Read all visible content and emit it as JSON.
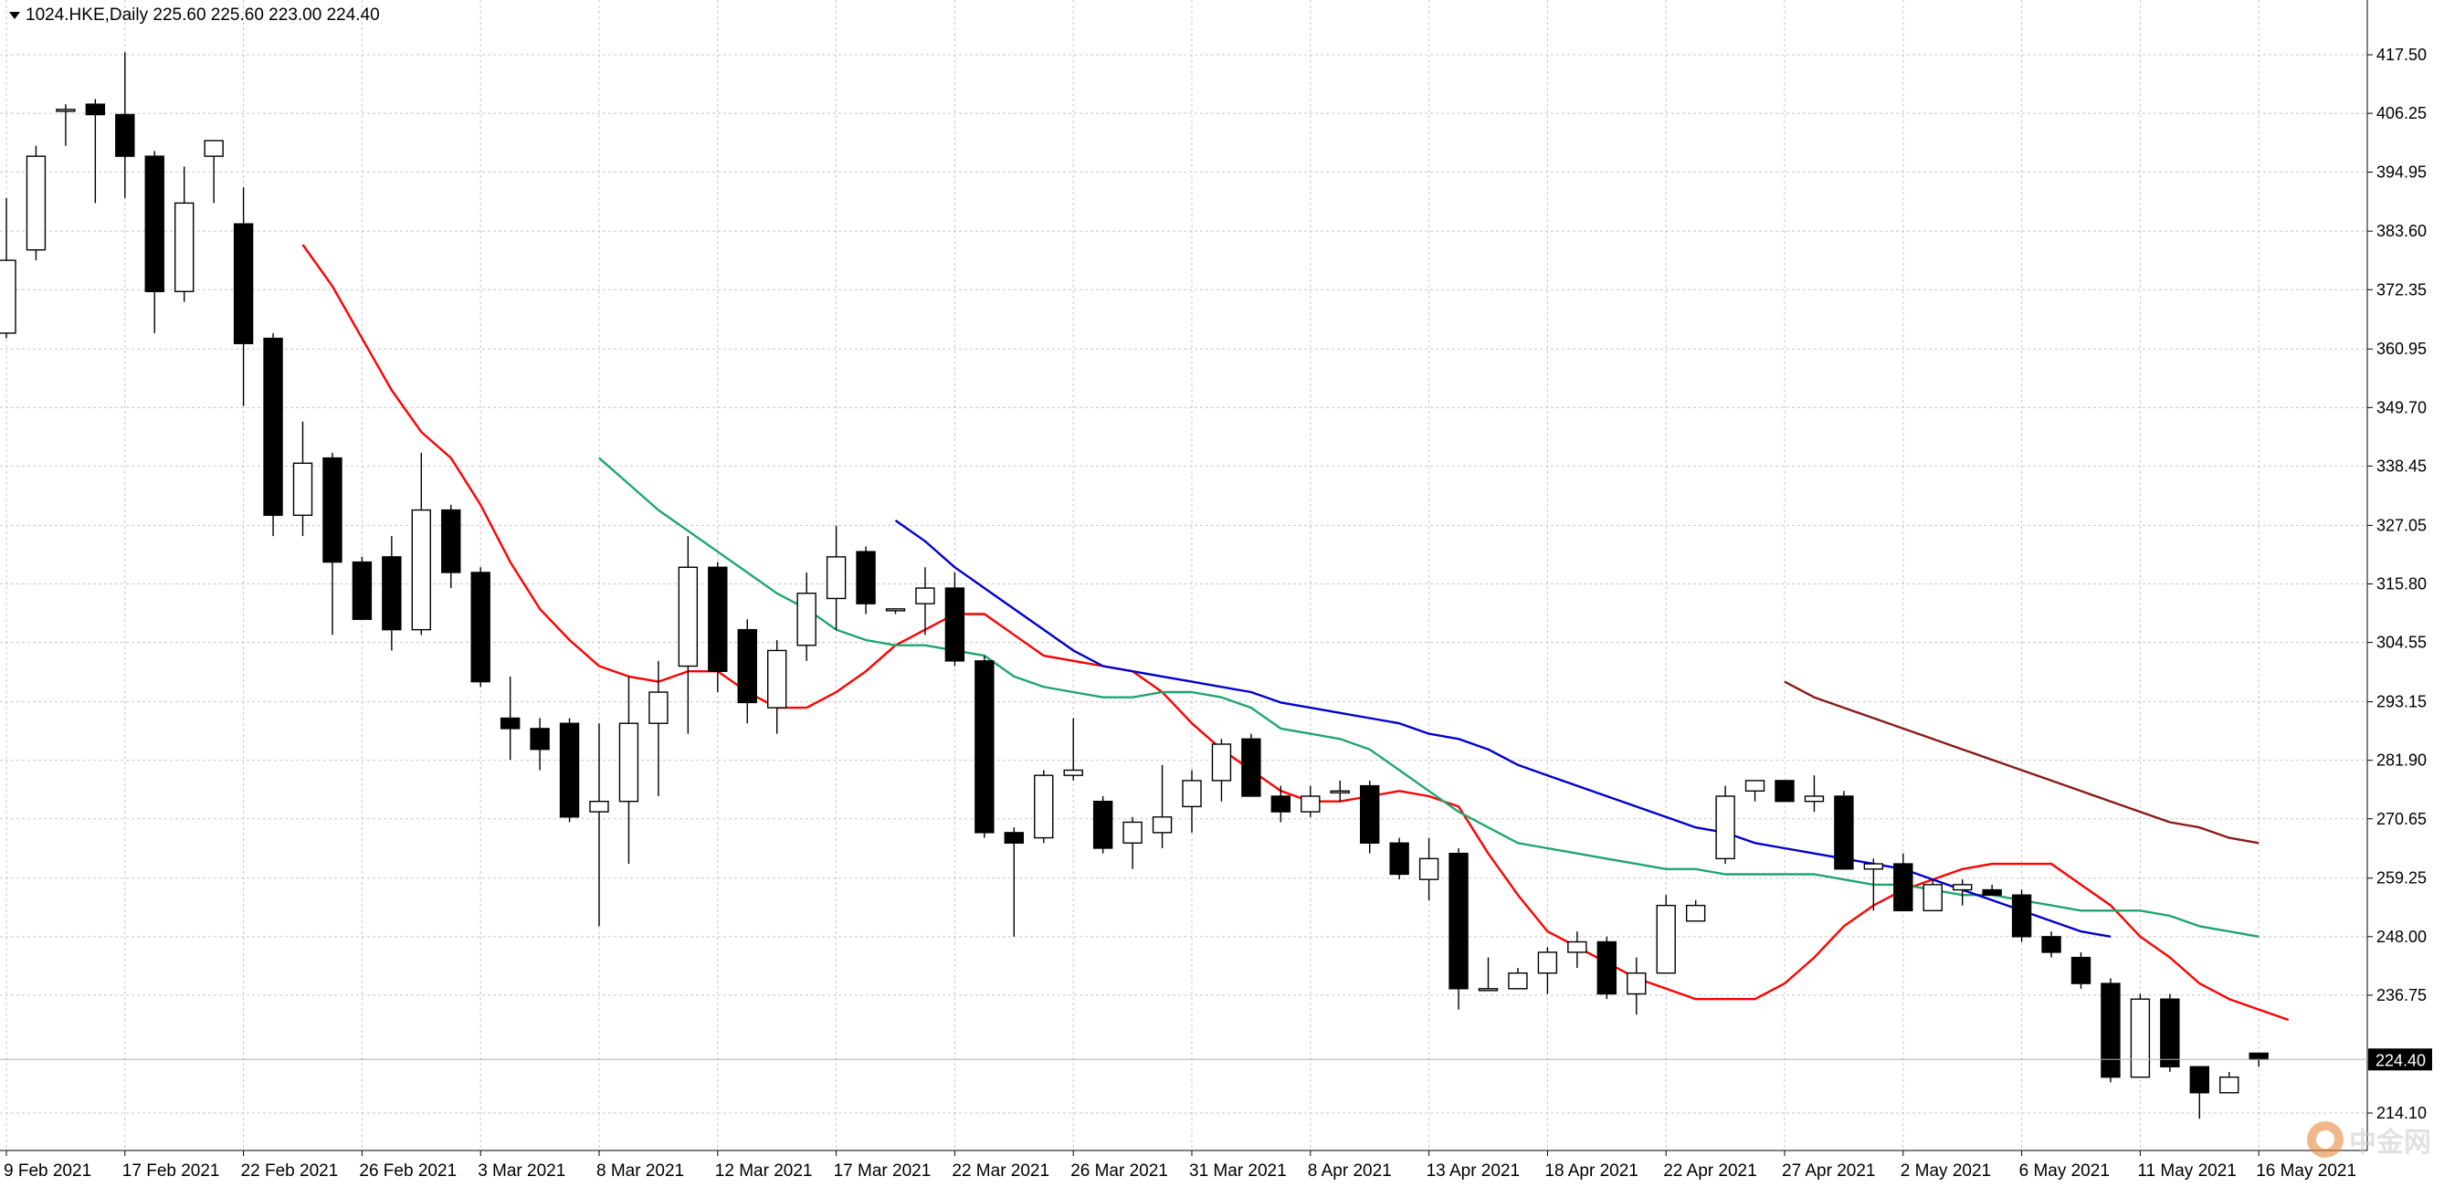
{
  "header": {
    "text": "1024.HKE,Daily  225.60 225.60 223.00 224.40"
  },
  "watermark": {
    "text": "中金网"
  },
  "chart_data": {
    "type": "candlestick",
    "symbol": "1024.HKE",
    "timeframe": "Daily",
    "ylim": [
      207.6,
      425.0
    ],
    "grid": true,
    "current_price": {
      "label": "224.40",
      "value": 224.4
    },
    "y_ticks": [
      {
        "label": "417.50",
        "value": 417.5
      },
      {
        "label": "406.25",
        "value": 406.25
      },
      {
        "label": "394.95",
        "value": 394.95
      },
      {
        "label": "383.60",
        "value": 383.6
      },
      {
        "label": "372.35",
        "value": 372.35
      },
      {
        "label": "360.95",
        "value": 360.95
      },
      {
        "label": "349.70",
        "value": 349.7
      },
      {
        "label": "338.45",
        "value": 338.45
      },
      {
        "label": "327.05",
        "value": 327.05
      },
      {
        "label": "315.80",
        "value": 315.8
      },
      {
        "label": "304.55",
        "value": 304.55
      },
      {
        "label": "293.15",
        "value": 293.15
      },
      {
        "label": "281.90",
        "value": 281.9
      },
      {
        "label": "270.65",
        "value": 270.65
      },
      {
        "label": "259.25",
        "value": 259.25
      },
      {
        "label": "248.00",
        "value": 248.0
      },
      {
        "label": "236.75",
        "value": 236.75
      },
      {
        "label": "214.10",
        "value": 214.1
      }
    ],
    "x_ticks": [
      {
        "label": "9 Feb 2021",
        "index": 0
      },
      {
        "label": "17 Feb 2021",
        "index": 4
      },
      {
        "label": "22 Feb 2021",
        "index": 8
      },
      {
        "label": "26 Feb 2021",
        "index": 12
      },
      {
        "label": "3 Mar 2021",
        "index": 16
      },
      {
        "label": "8 Mar 2021",
        "index": 20
      },
      {
        "label": "12 Mar 2021",
        "index": 24
      },
      {
        "label": "17 Mar 2021",
        "index": 28
      },
      {
        "label": "22 Mar 2021",
        "index": 32
      },
      {
        "label": "26 Mar 2021",
        "index": 36
      },
      {
        "label": "31 Mar 2021",
        "index": 40
      },
      {
        "label": "8 Apr 2021",
        "index": 44
      },
      {
        "label": "13 Apr 2021",
        "index": 48
      },
      {
        "label": "18 Apr 2021",
        "index": 52
      },
      {
        "label": "22 Apr 2021",
        "index": 56
      },
      {
        "label": "27 Apr 2021",
        "index": 60
      },
      {
        "label": "2 May 2021",
        "index": 64
      },
      {
        "label": "6 May 2021",
        "index": 68
      },
      {
        "label": "11 May 2021",
        "index": 72
      },
      {
        "label": "16 May 2021",
        "index": 76
      }
    ],
    "candles": [
      {
        "o": 364.0,
        "h": 390.0,
        "l": 363.0,
        "c": 378.0
      },
      {
        "o": 380.0,
        "h": 400.0,
        "l": 378.0,
        "c": 398.0
      },
      {
        "o": 407.0,
        "h": 408.0,
        "l": 400.0,
        "c": 407.0
      },
      {
        "o": 408.0,
        "h": 409.0,
        "l": 389.0,
        "c": 406.0
      },
      {
        "o": 406.0,
        "h": 418.0,
        "l": 390.0,
        "c": 398.0
      },
      {
        "o": 398.0,
        "h": 399.0,
        "l": 364.0,
        "c": 372.0
      },
      {
        "o": 372.0,
        "h": 396.0,
        "l": 370.0,
        "c": 389.0
      },
      {
        "o": 398.0,
        "h": 401.0,
        "l": 389.0,
        "c": 401.0
      },
      {
        "o": 385.0,
        "h": 392.0,
        "l": 350.0,
        "c": 362.0
      },
      {
        "o": 363.0,
        "h": 364.0,
        "l": 325.0,
        "c": 329.0
      },
      {
        "o": 329.0,
        "h": 347.0,
        "l": 325.0,
        "c": 339.0
      },
      {
        "o": 340.0,
        "h": 341.0,
        "l": 306.0,
        "c": 320.0
      },
      {
        "o": 320.0,
        "h": 321.0,
        "l": 309.0,
        "c": 309.0
      },
      {
        "o": 321.0,
        "h": 325.0,
        "l": 303.0,
        "c": 307.0
      },
      {
        "o": 307.0,
        "h": 341.0,
        "l": 306.0,
        "c": 330.0
      },
      {
        "o": 330.0,
        "h": 331.0,
        "l": 315.0,
        "c": 318.0
      },
      {
        "o": 318.0,
        "h": 319.0,
        "l": 296.0,
        "c": 297.0
      },
      {
        "o": 290.0,
        "h": 298.0,
        "l": 282.0,
        "c": 288.0
      },
      {
        "o": 288.0,
        "h": 290.0,
        "l": 280.0,
        "c": 284.0
      },
      {
        "o": 289.0,
        "h": 290.0,
        "l": 270.0,
        "c": 271.0
      },
      {
        "o": 272.0,
        "h": 289.0,
        "l": 250.0,
        "c": 274.0
      },
      {
        "o": 274.0,
        "h": 298.0,
        "l": 262.0,
        "c": 289.0
      },
      {
        "o": 289.0,
        "h": 301.0,
        "l": 275.0,
        "c": 295.0
      },
      {
        "o": 300.0,
        "h": 325.0,
        "l": 287.0,
        "c": 319.0
      },
      {
        "o": 319.0,
        "h": 320.0,
        "l": 295.0,
        "c": 299.0
      },
      {
        "o": 307.0,
        "h": 309.0,
        "l": 289.0,
        "c": 293.0
      },
      {
        "o": 292.0,
        "h": 305.0,
        "l": 287.0,
        "c": 303.0
      },
      {
        "o": 304.0,
        "h": 318.0,
        "l": 301.0,
        "c": 314.0
      },
      {
        "o": 313.0,
        "h": 327.0,
        "l": 307.0,
        "c": 321.0
      },
      {
        "o": 322.0,
        "h": 323.0,
        "l": 310.0,
        "c": 312.0
      },
      {
        "o": 311.0,
        "h": 311.0,
        "l": 310.0,
        "c": 311.0
      },
      {
        "o": 312.0,
        "h": 319.0,
        "l": 306.0,
        "c": 315.0
      },
      {
        "o": 315.0,
        "h": 318.0,
        "l": 300.0,
        "c": 301.0
      },
      {
        "o": 301.0,
        "h": 302.0,
        "l": 267.0,
        "c": 268.0
      },
      {
        "o": 268.0,
        "h": 269.0,
        "l": 248.0,
        "c": 266.0
      },
      {
        "o": 267.0,
        "h": 280.0,
        "l": 266.0,
        "c": 279.0
      },
      {
        "o": 279.0,
        "h": 290.0,
        "l": 278.0,
        "c": 280.0
      },
      {
        "o": 274.0,
        "h": 275.0,
        "l": 264.0,
        "c": 265.0
      },
      {
        "o": 266.0,
        "h": 271.0,
        "l": 261.0,
        "c": 270.0
      },
      {
        "o": 268.0,
        "h": 281.0,
        "l": 265.0,
        "c": 271.0
      },
      {
        "o": 273.0,
        "h": 280.0,
        "l": 268.0,
        "c": 278.0
      },
      {
        "o": 278.0,
        "h": 286.0,
        "l": 274.0,
        "c": 285.0
      },
      {
        "o": 286.0,
        "h": 287.0,
        "l": 275.0,
        "c": 275.0
      },
      {
        "o": 275.0,
        "h": 277.0,
        "l": 270.0,
        "c": 272.0
      },
      {
        "o": 272.0,
        "h": 277.0,
        "l": 271.0,
        "c": 275.0
      },
      {
        "o": 276.0,
        "h": 278.0,
        "l": 274.0,
        "c": 276.0
      },
      {
        "o": 277.0,
        "h": 278.0,
        "l": 264.0,
        "c": 266.0
      },
      {
        "o": 266.0,
        "h": 267.0,
        "l": 259.0,
        "c": 260.0
      },
      {
        "o": 259.0,
        "h": 267.0,
        "l": 255.0,
        "c": 263.0
      },
      {
        "o": 264.0,
        "h": 265.0,
        "l": 234.0,
        "c": 238.0
      },
      {
        "o": 238.0,
        "h": 244.0,
        "l": 238.0,
        "c": 238.0
      },
      {
        "o": 238.0,
        "h": 242.0,
        "l": 238.0,
        "c": 241.0
      },
      {
        "o": 241.0,
        "h": 246.0,
        "l": 237.0,
        "c": 245.0
      },
      {
        "o": 245.0,
        "h": 249.0,
        "l": 242.0,
        "c": 247.0
      },
      {
        "o": 247.0,
        "h": 248.0,
        "l": 236.0,
        "c": 237.0
      },
      {
        "o": 237.0,
        "h": 244.0,
        "l": 233.0,
        "c": 241.0
      },
      {
        "o": 241.0,
        "h": 256.0,
        "l": 241.0,
        "c": 254.0
      },
      {
        "o": 251.0,
        "h": 255.0,
        "l": 251.0,
        "c": 254.0
      },
      {
        "o": 263.0,
        "h": 277.0,
        "l": 262.0,
        "c": 275.0
      },
      {
        "o": 276.0,
        "h": 278.0,
        "l": 274.0,
        "c": 278.0
      },
      {
        "o": 278.0,
        "h": 278.0,
        "l": 274.0,
        "c": 274.0
      },
      {
        "o": 274.0,
        "h": 279.0,
        "l": 272.0,
        "c": 275.0
      },
      {
        "o": 275.0,
        "h": 276.0,
        "l": 261.0,
        "c": 261.0
      },
      {
        "o": 261.0,
        "h": 263.0,
        "l": 253.0,
        "c": 262.0
      },
      {
        "o": 262.0,
        "h": 264.0,
        "l": 253.0,
        "c": 253.0
      },
      {
        "o": 253.0,
        "h": 259.0,
        "l": 253.0,
        "c": 258.0
      },
      {
        "o": 257.0,
        "h": 259.0,
        "l": 254.0,
        "c": 258.0
      },
      {
        "o": 257.0,
        "h": 258.0,
        "l": 256.0,
        "c": 256.0
      },
      {
        "o": 256.0,
        "h": 257.0,
        "l": 247.0,
        "c": 248.0
      },
      {
        "o": 248.0,
        "h": 249.0,
        "l": 244.0,
        "c": 245.0
      },
      {
        "o": 244.0,
        "h": 245.0,
        "l": 238.0,
        "c": 239.0
      },
      {
        "o": 239.0,
        "h": 240.0,
        "l": 220.0,
        "c": 221.0
      },
      {
        "o": 221.0,
        "h": 237.0,
        "l": 221.0,
        "c": 236.0
      },
      {
        "o": 236.0,
        "h": 237.0,
        "l": 222.0,
        "c": 223.0
      },
      {
        "o": 223.0,
        "h": 223.0,
        "l": 213.0,
        "c": 218.0
      },
      {
        "o": 218.0,
        "h": 222.0,
        "l": 218.0,
        "c": 221.0
      },
      {
        "o": 225.6,
        "h": 225.6,
        "l": 223.0,
        "c": 224.4
      }
    ],
    "series": [
      {
        "color": "#ff0000",
        "start": 10,
        "values": [
          381,
          373,
          363,
          353,
          345,
          340,
          331,
          320,
          311,
          305,
          300,
          298,
          297,
          299,
          299,
          295,
          292,
          292,
          295,
          299,
          304,
          307,
          310,
          310,
          306,
          302,
          301,
          300,
          299,
          295,
          289,
          284,
          280,
          276,
          274,
          274,
          275,
          276,
          275,
          273,
          264,
          256,
          249,
          246,
          243,
          240,
          238,
          236,
          236,
          236,
          239,
          244,
          250,
          254,
          257,
          259,
          261,
          262,
          262,
          262,
          258,
          254,
          248,
          244,
          239,
          236,
          234,
          232
        ]
      },
      {
        "color": "#1fa56e",
        "start": 20,
        "values": [
          340,
          335,
          330,
          326,
          322,
          318,
          314,
          311,
          307,
          305,
          304,
          304,
          303,
          302,
          298,
          296,
          295,
          294,
          294,
          295,
          295,
          294,
          292,
          288,
          287,
          286,
          284,
          280,
          276,
          272,
          269,
          266,
          265,
          264,
          263,
          262,
          261,
          261,
          260,
          260,
          260,
          260,
          259,
          258,
          258,
          257,
          256,
          256,
          255,
          254,
          253,
          253,
          253,
          252,
          250,
          249,
          248
        ]
      },
      {
        "color": "#0000cc",
        "start": 30,
        "values": [
          328,
          324,
          319,
          315,
          311,
          307,
          303,
          300,
          299,
          298,
          297,
          296,
          295,
          293,
          292,
          291,
          290,
          289,
          287,
          286,
          284,
          281,
          279,
          277,
          275,
          273,
          271,
          269,
          268,
          266,
          265,
          264,
          263,
          262,
          261,
          259,
          257,
          255,
          253,
          251,
          249,
          248
        ]
      },
      {
        "color": "#8b1a1a",
        "start": 60,
        "values": [
          297,
          294,
          292,
          290,
          288,
          286,
          284,
          282,
          280,
          278,
          276,
          274,
          272,
          270,
          269,
          267,
          266
        ]
      }
    ]
  }
}
